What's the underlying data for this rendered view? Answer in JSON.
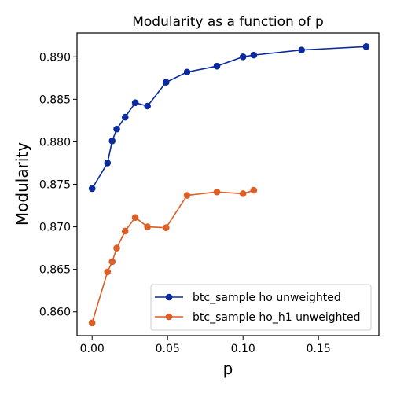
{
  "chart_data": {
    "type": "line",
    "title": "Modularity as a function of p",
    "xlabel": "p",
    "ylabel": "Modularity",
    "xlim": [
      -0.01,
      0.19
    ],
    "ylim": [
      0.8572,
      0.8928
    ],
    "xticks": [
      0.0,
      0.05,
      0.1,
      0.15
    ],
    "xtick_labels": [
      "0.00",
      "0.05",
      "0.10",
      "0.15"
    ],
    "yticks": [
      0.86,
      0.865,
      0.87,
      0.875,
      0.88,
      0.885,
      0.89
    ],
    "ytick_labels": [
      "0.860",
      "0.865",
      "0.870",
      "0.875",
      "0.880",
      "0.885",
      "0.890"
    ],
    "grid": false,
    "legend_position": "lower-right",
    "series": [
      {
        "name": "btc_sample ho unweighted",
        "color": "#0a2a9e",
        "x": [
          0.0,
          0.0102,
          0.0133,
          0.0163,
          0.0219,
          0.0286,
          0.0367,
          0.049,
          0.0629,
          0.0827,
          0.1,
          0.1071,
          0.1388,
          0.1816
        ],
        "y": [
          0.8745,
          0.8775,
          0.8801,
          0.8815,
          0.8829,
          0.8846,
          0.8842,
          0.887,
          0.8882,
          0.8889,
          0.89,
          0.8902,
          0.8908,
          0.8912
        ]
      },
      {
        "name": "btc_sample ho_h1 unweighted",
        "color": "#db5f27",
        "x": [
          0.0,
          0.0102,
          0.0133,
          0.0163,
          0.0219,
          0.0286,
          0.0367,
          0.049,
          0.0629,
          0.0827,
          0.1,
          0.1071
        ],
        "y": [
          0.8587,
          0.8647,
          0.8659,
          0.8675,
          0.8695,
          0.8711,
          0.87,
          0.8699,
          0.8737,
          0.8741,
          0.8739,
          0.8743
        ]
      }
    ]
  }
}
